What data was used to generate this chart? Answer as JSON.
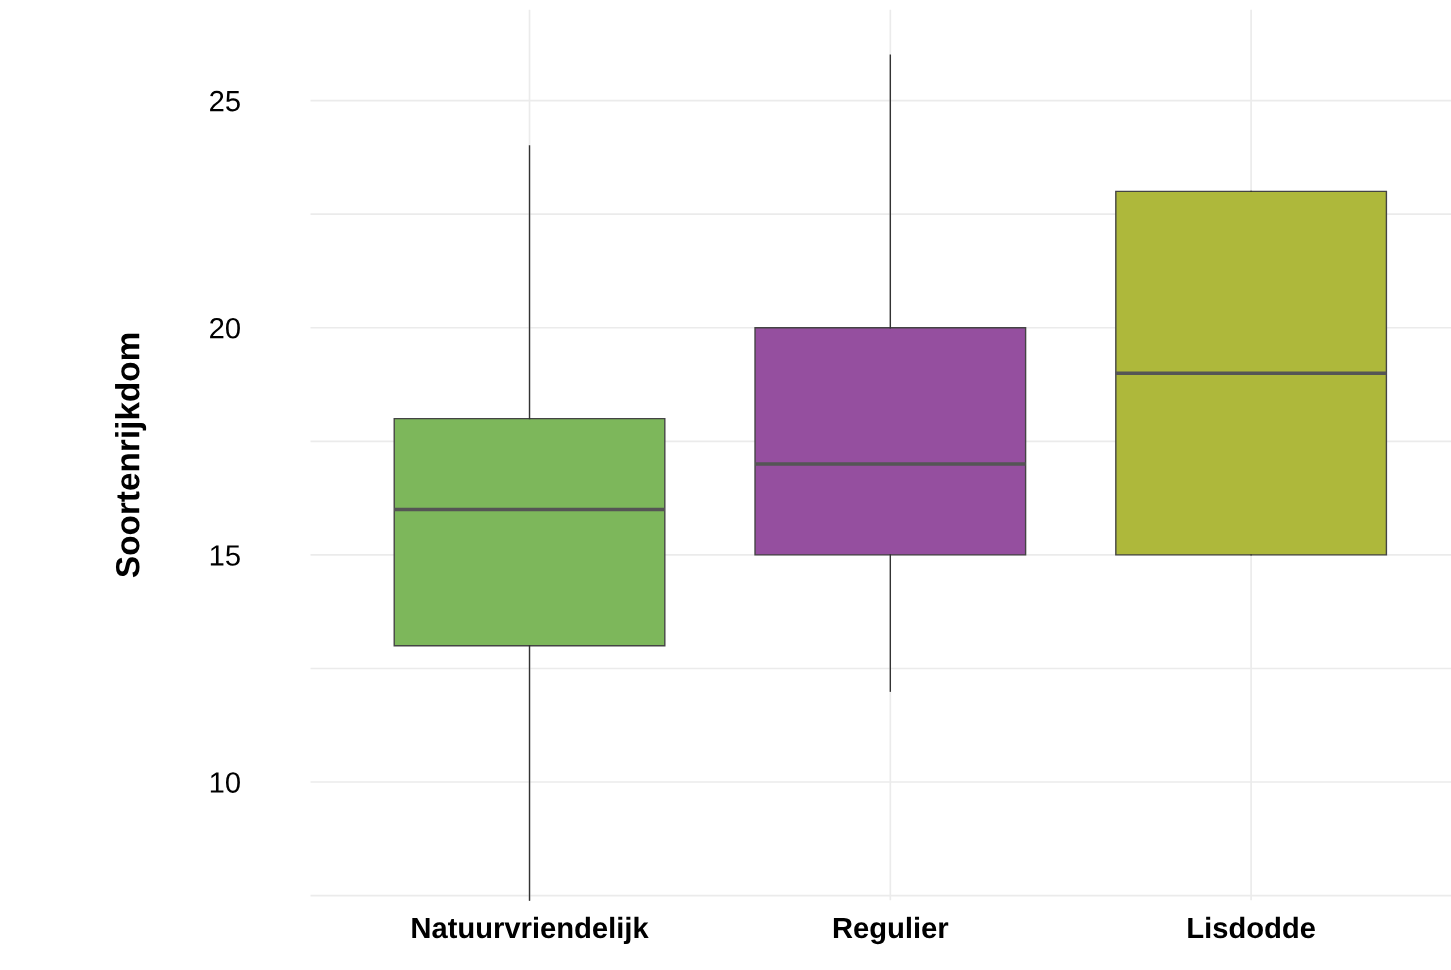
{
  "chart_data": {
    "type": "box",
    "ylabel": "Soortenrijkdom",
    "categories": [
      "Natuurvriendelijk",
      "Regulier",
      "Lisdodde"
    ],
    "colors": [
      "#7db75b",
      "#954f9f",
      "#aeb83b"
    ],
    "boxes": [
      {
        "low": 7.4,
        "q1": 13,
        "median": 16,
        "q3": 18,
        "high": 24
      },
      {
        "low": 12,
        "q1": 15,
        "median": 17,
        "q3": 20,
        "high": 26
      },
      {
        "low": 15,
        "q1": 15,
        "median": 19,
        "q3": 23,
        "high": 23
      }
    ],
    "ylim": [
      7.4,
      27
    ],
    "yticks": [
      {
        "value": 7.5,
        "label": null
      },
      10,
      {
        "value": 12.5,
        "label": null
      },
      15,
      {
        "value": 17.5,
        "label": null
      },
      20,
      {
        "value": 22.5,
        "label": null
      },
      25
    ],
    "grid": true
  }
}
